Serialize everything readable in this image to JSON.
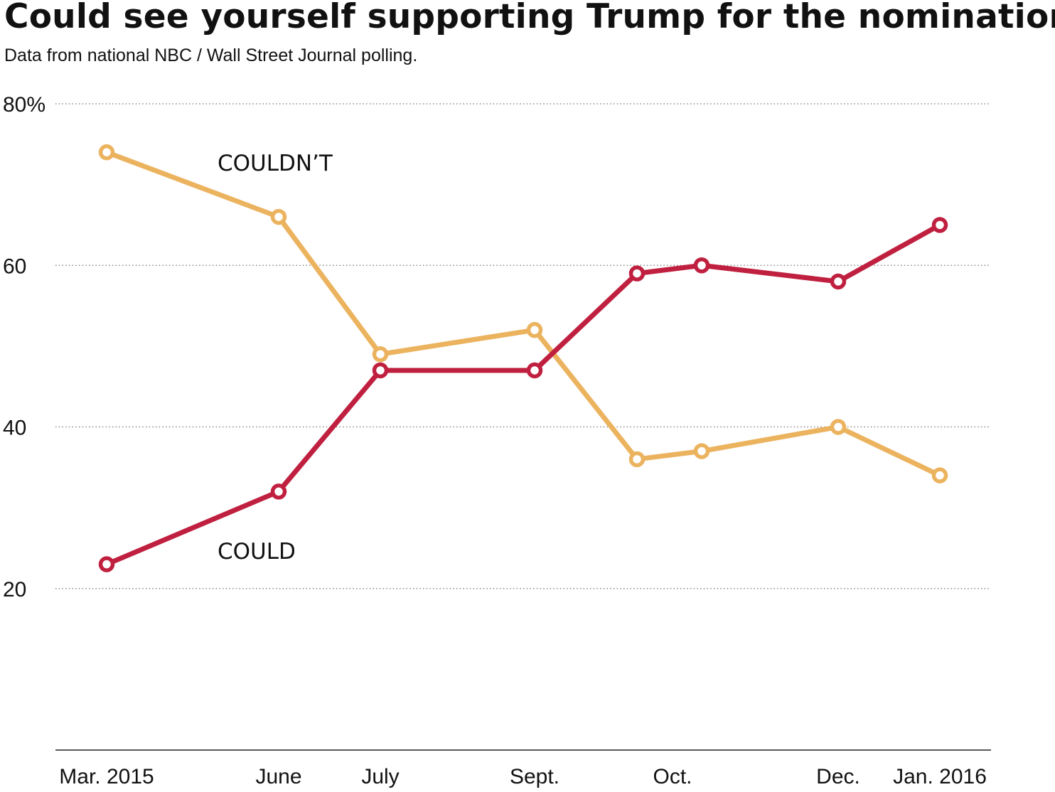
{
  "chart_data": {
    "type": "line",
    "title": "Could see yourself supporting Trump for the nomination?",
    "subtitle": "Data from national NBC / Wall Street Journal polling.",
    "categories": [
      "Mar. 2015",
      "June",
      "July",
      "Sept.",
      "Oct.",
      "Dec.",
      "Jan. 2016"
    ],
    "yticks": [
      "80%",
      "60",
      "40",
      "20"
    ],
    "ytick_values": [
      80,
      60,
      40,
      20
    ],
    "ylim": [
      0,
      80
    ],
    "grid": true,
    "series": [
      {
        "name": "COULDN’T",
        "color": "#ecb35f",
        "points": [
          {
            "x": "2015-03",
            "y": 74
          },
          {
            "x": "2015-06",
            "y": 66
          },
          {
            "x": "2015-07",
            "y": 49
          },
          {
            "x": "2015-09",
            "y": 52
          },
          {
            "x": "2015-10",
            "y": 36
          },
          {
            "x": "2015-10",
            "y": 37
          },
          {
            "x": "2015-12",
            "y": 40
          },
          {
            "x": "2016-01",
            "y": 34
          }
        ]
      },
      {
        "name": "COULD",
        "color": "#c0203f",
        "points": [
          {
            "x": "2015-03",
            "y": 23
          },
          {
            "x": "2015-06",
            "y": 32
          },
          {
            "x": "2015-07",
            "y": 47
          },
          {
            "x": "2015-09",
            "y": 47
          },
          {
            "x": "2015-10",
            "y": 59
          },
          {
            "x": "2015-10",
            "y": 60
          },
          {
            "x": "2015-12",
            "y": 58
          },
          {
            "x": "2016-01",
            "y": 65
          }
        ]
      }
    ]
  }
}
